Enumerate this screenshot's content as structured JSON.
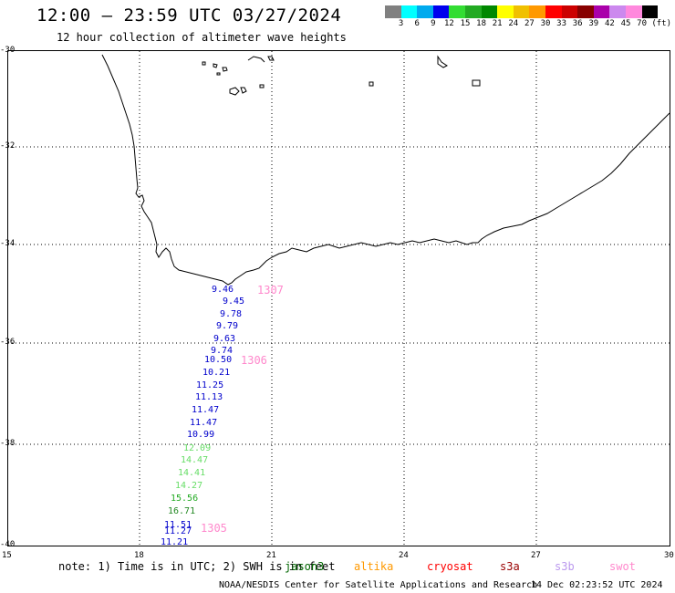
{
  "title": "12:00 – 23:59 UTC 03/27/2024",
  "subtitle": "12 hour collection of altimeter wave heights",
  "scale": {
    "labels": [
      "3",
      "6",
      "9",
      "12",
      "15",
      "18",
      "21",
      "24",
      "27",
      "30",
      "33",
      "36",
      "39",
      "42",
      "45",
      "70"
    ],
    "unit": "(ft)",
    "colors": [
      "#808080",
      "#00ffff",
      "#00aaee",
      "#0000ee",
      "#33dd33",
      "#22aa22",
      "#008800",
      "#ffff00",
      "#f0c000",
      "#ff9900",
      "#ff0000",
      "#cc0000",
      "#880000",
      "#aa00aa",
      "#cc88ee",
      "#ff88dd",
      "#000000"
    ]
  },
  "axes": {
    "lat_ticks": [
      "-30",
      "-32",
      "-34",
      "-36",
      "-38",
      "-40"
    ],
    "lon_ticks": [
      "15",
      "18",
      "21",
      "24",
      "27",
      "30"
    ]
  },
  "measurements": [
    {
      "v": "9.46",
      "color": "#0000cc"
    },
    {
      "v": "9.45",
      "color": "#0000cc"
    },
    {
      "v": "9.78",
      "color": "#0000cc"
    },
    {
      "v": "9.79",
      "color": "#0000cc"
    },
    {
      "v": "9.63",
      "color": "#0000cc"
    },
    {
      "v": "9.74",
      "color": "#0000cc"
    },
    {
      "v": "10.50",
      "color": "#0000cc"
    },
    {
      "v": "10.21",
      "color": "#0000cc"
    },
    {
      "v": "11.25",
      "color": "#0000cc"
    },
    {
      "v": "11.13",
      "color": "#0000cc"
    },
    {
      "v": "11.47",
      "color": "#0000cc"
    },
    {
      "v": "11.47",
      "color": "#0000cc"
    },
    {
      "v": "10.99",
      "color": "#0000cc"
    },
    {
      "v": "12.09",
      "color": "#66dd66"
    },
    {
      "v": "14.47",
      "color": "#66dd66"
    },
    {
      "v": "14.41",
      "color": "#66dd66"
    },
    {
      "v": "14.27",
      "color": "#66dd66"
    },
    {
      "v": "15.56",
      "color": "#22aa22"
    },
    {
      "v": "16.71",
      "color": "#228822"
    },
    {
      "v": "11.51",
      "color": "#0000cc"
    },
    {
      "v": "11.27",
      "color": "#0000cc"
    },
    {
      "v": "11.21",
      "color": "#0000cc"
    }
  ],
  "pass_times": [
    "1307",
    "1306",
    "1305"
  ],
  "note": "note: 1) Time is in UTC; 2) SWH is in feet",
  "satellites": [
    {
      "name": "jason3",
      "color": "#006600"
    },
    {
      "name": "altika",
      "color": "#ff9900"
    },
    {
      "name": "cryosat",
      "color": "#ff0000"
    },
    {
      "name": "s3a",
      "color": "#990000"
    },
    {
      "name": "s3b",
      "color": "#bb99ee"
    },
    {
      "name": "swot",
      "color": "#ff88cc"
    }
  ],
  "credit": "NOAA/NESDIS Center for Satellite Applications and Research",
  "timestamp": "14 Dec 02:23:52 UTC 2024"
}
